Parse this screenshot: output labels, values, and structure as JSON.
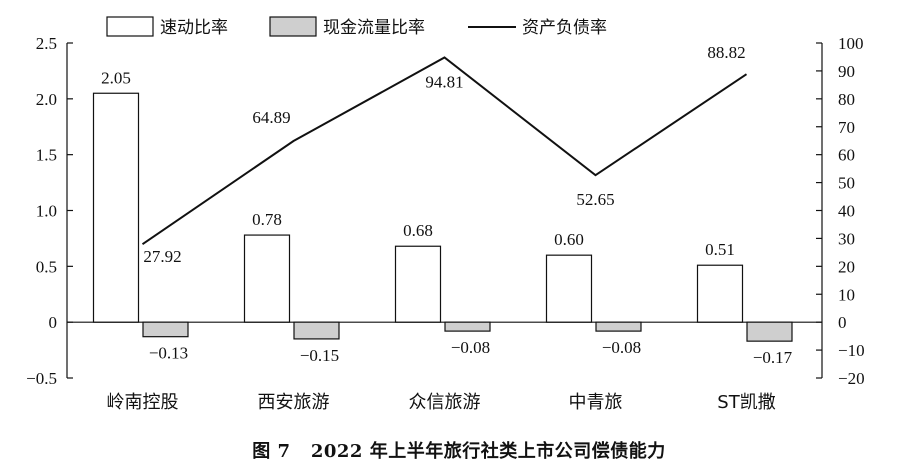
{
  "caption": {
    "fig": "图 7",
    "title": "2022 年上半年旅行社类上市公司偿债能力"
  },
  "colors": {
    "bar1_fill": "#ffffff",
    "bar2_fill": "#cfcfcf",
    "stroke": "#111111"
  },
  "chart_data": {
    "type": "bar+line",
    "categories": [
      "岭南控股",
      "西安旅游",
      "众信旅游",
      "中青旅",
      "ST凯撒"
    ],
    "series": [
      {
        "name": "速动比率",
        "type": "bar",
        "axis": "left",
        "values": [
          2.05,
          0.78,
          0.68,
          0.6,
          0.51
        ],
        "labels": [
          "2.05",
          "0.78",
          "0.68",
          "0.60",
          "0.51"
        ]
      },
      {
        "name": "现金流量比率",
        "type": "bar",
        "axis": "left",
        "values": [
          -0.13,
          -0.15,
          -0.08,
          -0.08,
          -0.17
        ],
        "labels": [
          "−0.13",
          "−0.15",
          "−0.08",
          "−0.08",
          "−0.17"
        ]
      },
      {
        "name": "资产负债率",
        "type": "line",
        "axis": "right",
        "values": [
          27.92,
          64.89,
          94.81,
          52.65,
          88.82
        ],
        "labels": [
          "27.92",
          "64.89",
          "94.81",
          "52.65",
          "88.82"
        ]
      }
    ],
    "y_left": {
      "range": [
        -0.5,
        2.5
      ],
      "ticks": [
        "−0.5",
        "0",
        "0.5",
        "1.0",
        "1.5",
        "2.0",
        "2.5"
      ],
      "tick_values": [
        -0.5,
        0,
        0.5,
        1.0,
        1.5,
        2.0,
        2.5
      ]
    },
    "y_right": {
      "range": [
        -20,
        100
      ],
      "ticks": [
        "−20",
        "−10",
        "0",
        "10",
        "20",
        "30",
        "40",
        "50",
        "60",
        "70",
        "80",
        "90",
        "100"
      ],
      "tick_values": [
        -20,
        -10,
        0,
        10,
        20,
        30,
        40,
        50,
        60,
        70,
        80,
        90,
        100
      ]
    },
    "legend_position": "top",
    "grid": false
  }
}
